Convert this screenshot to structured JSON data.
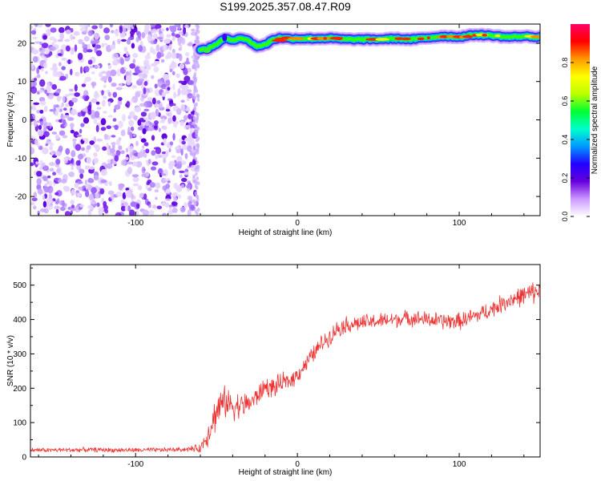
{
  "figure": {
    "title": "S199.2025.357.08.47.R09"
  },
  "chart_data": [
    {
      "type": "heatmap",
      "title": "S199.2025.357.08.47.R09",
      "xlabel": "Height of straight line (km)",
      "ylabel": "Frequency (Hz)",
      "xlim": [
        -165,
        150
      ],
      "ylim": [
        -25,
        25
      ],
      "xticks": [
        -100,
        0,
        100
      ],
      "yticks": [
        20,
        10,
        0,
        -10,
        -20
      ],
      "noise_region_x": [
        -165,
        -62
      ],
      "signal_band": {
        "x": [
          -60,
          -55,
          -50,
          -45,
          -40,
          -35,
          -30,
          -25,
          -20,
          -15,
          -10,
          -5,
          0,
          10,
          20,
          30,
          40,
          50,
          60,
          70,
          80,
          90,
          100,
          110,
          120,
          130,
          140,
          150
        ],
        "hz": [
          18.2,
          18.6,
          19.8,
          21.2,
          20.8,
          21.4,
          20.6,
          19.2,
          19.6,
          21.0,
          21.4,
          21.2,
          21.2,
          21.2,
          21.3,
          21.0,
          21.0,
          21.0,
          21.2,
          21.0,
          21.4,
          21.8,
          21.6,
          22.2,
          22.0,
          21.6,
          21.8,
          21.6
        ]
      },
      "colorbar": {
        "label": "Normalized spectral amplitude",
        "ticks": [
          "0.0",
          "0.2",
          "0.4",
          "0.6",
          "0.8"
        ],
        "tick_values": [
          0,
          0.2,
          0.4,
          0.6,
          0.8
        ],
        "range": [
          0,
          1
        ],
        "colors": [
          "#ffffff",
          "#cc99ff",
          "#6600dd",
          "#2200ff",
          "#0099ff",
          "#00ffcc",
          "#00ff33",
          "#bbff00",
          "#ffff00",
          "#ff9900",
          "#ff0000",
          "#ff0066"
        ]
      }
    },
    {
      "type": "line",
      "xlabel": "Height of straight line (km)",
      "ylabel": "SNR (10 * v/v)",
      "xlim": [
        -165,
        150
      ],
      "ylim": [
        0,
        560
      ],
      "xticks": [
        -100,
        0,
        100
      ],
      "yticks": [
        0,
        100,
        200,
        300,
        400,
        500
      ],
      "series": [
        {
          "name": "SNR",
          "color": "#ee3333",
          "x": [
            -165,
            -150,
            -130,
            -110,
            -90,
            -70,
            -60,
            -56,
            -52,
            -48,
            -44,
            -40,
            -35,
            -30,
            -25,
            -20,
            -15,
            -10,
            -5,
            0,
            5,
            10,
            15,
            20,
            25,
            30,
            40,
            50,
            60,
            70,
            80,
            90,
            100,
            110,
            120,
            130,
            140,
            150
          ],
          "values": [
            20,
            20,
            21,
            20,
            20,
            22,
            25,
            60,
            110,
            150,
            160,
            150,
            150,
            155,
            175,
            205,
            200,
            215,
            220,
            240,
            270,
            300,
            330,
            350,
            375,
            385,
            390,
            395,
            400,
            405,
            400,
            395,
            395,
            410,
            430,
            455,
            470,
            485
          ],
          "noise_amplitude": [
            8,
            8,
            8,
            8,
            8,
            8,
            15,
            40,
            60,
            60,
            55,
            50,
            45,
            40,
            35,
            35,
            35,
            35,
            30,
            30,
            30,
            30,
            30,
            30,
            30,
            30,
            28,
            28,
            28,
            28,
            28,
            30,
            30,
            30,
            30,
            32,
            35,
            40
          ]
        }
      ]
    }
  ]
}
